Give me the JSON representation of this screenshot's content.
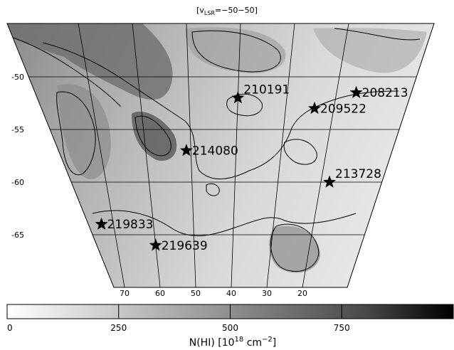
{
  "chart_data": {
    "type": "heatmap",
    "title_prefix": "[v",
    "title_sub": "LSR",
    "title_suffix": "=−50−50]",
    "y_ticks": [
      "-50",
      "-55",
      "-60",
      "-65"
    ],
    "x_ticks": [
      "70",
      "60",
      "50",
      "40",
      "30",
      "20"
    ],
    "stars": [
      {
        "name": "210191",
        "x": 40,
        "y": -52
      },
      {
        "name": "208213",
        "x": 16,
        "y": -51.5
      },
      {
        "name": "209522",
        "x": 24,
        "y": -53
      },
      {
        "name": "214080",
        "x": 51,
        "y": -57
      },
      {
        "name": "213728",
        "x": 18,
        "y": -60
      },
      {
        "name": "219833",
        "x": 73,
        "y": -64
      },
      {
        "name": "219639",
        "x": 60,
        "y": -66
      }
    ],
    "colorbar": {
      "ticks": [
        "0",
        "250",
        "500",
        "750"
      ],
      "range": [
        0,
        1000
      ],
      "label_prefix": "N(HI) [10",
      "label_exp": "18",
      "label_mid": " cm",
      "label_exp2": "−2",
      "label_suffix": "]"
    },
    "colormap": "greyscale, white=low, black=high"
  }
}
